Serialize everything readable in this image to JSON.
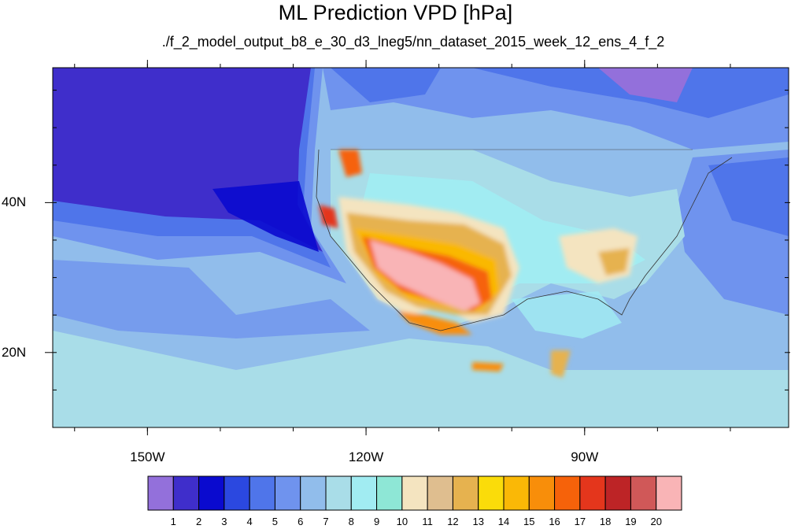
{
  "title": "ML Prediction VPD [hPa]",
  "subtitle": "./f_2_model_output_b8_e_30_d3_lneg5/nn_dataset_2015_week_12_ens_4_f_2",
  "map": {
    "lon_range": [
      -163,
      -62
    ],
    "lat_range": [
      10,
      58
    ],
    "lon_ticks": [
      {
        "value": -150,
        "label": "150W"
      },
      {
        "value": -120,
        "label": "120W"
      },
      {
        "value": -90,
        "label": "90W"
      }
    ],
    "lat_ticks": [
      {
        "value": 40,
        "label": "40N"
      },
      {
        "value": 20,
        "label": "20N"
      }
    ]
  },
  "colorbar": {
    "colors": [
      "#9370db",
      "#3f2ecb",
      "#0a0acf",
      "#2b48e0",
      "#4f75ea",
      "#6f93ee",
      "#91bdeb",
      "#a9dde8",
      "#a1ecf2",
      "#8ee7d6",
      "#f4e4c0",
      "#dfbe8f",
      "#e6b24f",
      "#fadc0a",
      "#fab806",
      "#f88e0a",
      "#f6620a",
      "#e4361c",
      "#bd2426",
      "#d05858",
      "#f9b4b6"
    ],
    "labels": [
      "1",
      "2",
      "3",
      "4",
      "5",
      "6",
      "7",
      "8",
      "9",
      "10",
      "11",
      "12",
      "13",
      "14",
      "15",
      "16",
      "17",
      "18",
      "19",
      "20"
    ]
  }
}
